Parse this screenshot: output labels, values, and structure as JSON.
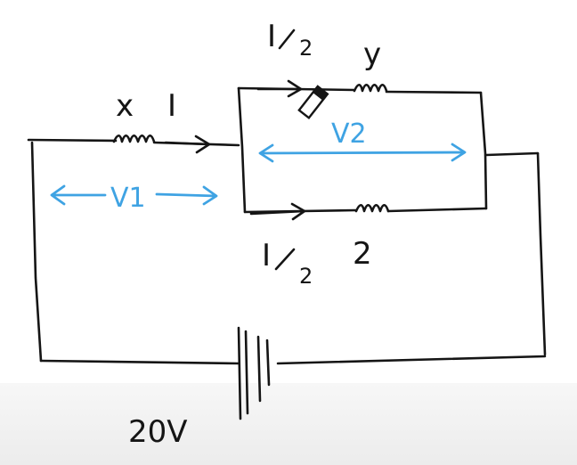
{
  "diagram": {
    "title": "",
    "battery": {
      "label": "20V"
    },
    "resistors": {
      "x": {
        "label": "x",
        "current": "I"
      },
      "y": {
        "label": "y",
        "current_num": "I",
        "current_den": "2"
      },
      "z": {
        "label": "2",
        "current_num": "I",
        "current_den": "2"
      }
    },
    "voltages": {
      "v1": "V1",
      "v2": "V2"
    },
    "colors": {
      "ink": "#151515",
      "annotation": "#3fa3e3",
      "band": "#ececec"
    }
  }
}
